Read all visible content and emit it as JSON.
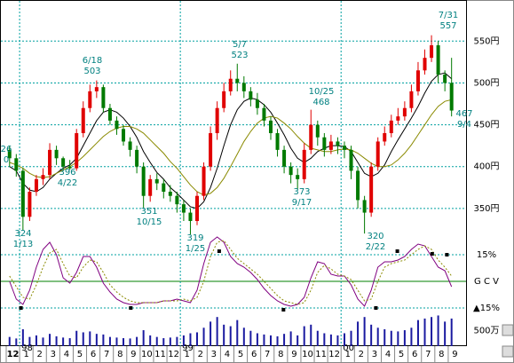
{
  "chart_data": [
    {
      "type": "candlestick",
      "categories": [
        "12",
        "1",
        "2",
        "3",
        "4",
        "5",
        "6",
        "7",
        "8",
        "9",
        "10",
        "11",
        "12",
        "1",
        "2",
        "3",
        "4",
        "5",
        "6",
        "7",
        "8",
        "9",
        "10",
        "11",
        "12",
        "1",
        "2",
        "3",
        "4",
        "5",
        "6",
        "7",
        "8",
        "9"
      ],
      "year_labels": [
        {
          "value": 1,
          "label": "98"
        },
        {
          "value": 13,
          "label": "99"
        },
        {
          "value": 25,
          "label": "00"
        }
      ],
      "xlim": [
        0,
        34
      ],
      "x": [
        0.25,
        0.75,
        1.25,
        1.75,
        2.25,
        2.75,
        3.25,
        3.75,
        4.25,
        4.75,
        5.25,
        5.75,
        6.25,
        6.75,
        7.25,
        7.75,
        8.25,
        8.75,
        9.25,
        9.75,
        10.25,
        10.75,
        11.25,
        11.75,
        12.25,
        12.75,
        13.25,
        13.75,
        14.25,
        14.75,
        15.25,
        15.75,
        16.25,
        16.75,
        17.25,
        17.75,
        18.25,
        18.75,
        19.25,
        19.75,
        20.25,
        20.75,
        21.25,
        21.75,
        22.25,
        22.75,
        23.25,
        23.75,
        24.25,
        24.75,
        25.25,
        25.75,
        26.25,
        26.75,
        27.25,
        27.75,
        28.25,
        28.75,
        29.25,
        29.75,
        30.25,
        30.75,
        31.25,
        31.75,
        32.25,
        32.75,
        33.25
      ],
      "open": [
        420,
        410,
        395,
        340,
        370,
        385,
        390,
        420,
        410,
        400,
        398,
        440,
        470,
        490,
        495,
        470,
        455,
        445,
        430,
        420,
        400,
        365,
        385,
        380,
        370,
        365,
        355,
        345,
        335,
        365,
        400,
        440,
        470,
        490,
        505,
        500,
        490,
        480,
        470,
        455,
        440,
        420,
        400,
        390,
        385,
        420,
        450,
        435,
        420,
        430,
        425,
        420,
        395,
        360,
        345,
        400,
        430,
        440,
        455,
        460,
        470,
        490,
        515,
        530,
        545,
        510,
        500
      ],
      "high": [
        425,
        415,
        398,
        375,
        390,
        398,
        428,
        425,
        412,
        408,
        445,
        478,
        498,
        503,
        498,
        475,
        460,
        450,
        435,
        425,
        405,
        390,
        392,
        385,
        378,
        370,
        360,
        350,
        370,
        405,
        448,
        478,
        500,
        515,
        523,
        508,
        495,
        488,
        475,
        460,
        445,
        425,
        405,
        398,
        428,
        468,
        455,
        440,
        438,
        435,
        430,
        425,
        400,
        365,
        405,
        435,
        448,
        462,
        470,
        478,
        498,
        525,
        540,
        557,
        550,
        515,
        530
      ],
      "low": [
        400,
        388,
        324,
        335,
        365,
        378,
        385,
        402,
        396,
        396,
        395,
        435,
        465,
        482,
        465,
        450,
        438,
        425,
        412,
        392,
        351,
        358,
        372,
        362,
        358,
        345,
        335,
        319,
        330,
        360,
        395,
        432,
        465,
        485,
        490,
        482,
        472,
        462,
        448,
        432,
        412,
        392,
        380,
        373,
        380,
        415,
        425,
        412,
        415,
        415,
        410,
        385,
        350,
        320,
        340,
        395,
        425,
        435,
        450,
        455,
        465,
        485,
        510,
        525,
        500,
        490,
        460
      ],
      "close": [
        410,
        395,
        340,
        370,
        385,
        390,
        420,
        410,
        400,
        398,
        440,
        470,
        490,
        495,
        470,
        455,
        445,
        430,
        420,
        400,
        365,
        385,
        380,
        370,
        365,
        355,
        345,
        335,
        365,
        400,
        440,
        470,
        490,
        505,
        500,
        490,
        480,
        470,
        455,
        440,
        420,
        400,
        390,
        385,
        420,
        450,
        435,
        420,
        430,
        425,
        420,
        395,
        360,
        345,
        400,
        430,
        440,
        455,
        460,
        470,
        490,
        515,
        530,
        545,
        510,
        500,
        467
      ],
      "up_color": "#e00000",
      "down_color": "#007a00",
      "series": [
        {
          "color": "#000000",
          "values": [
            400,
            395,
            380,
            372,
            370,
            375,
            385,
            392,
            398,
            402,
            410,
            425,
            440,
            455,
            465,
            468,
            465,
            458,
            448,
            435,
            418,
            405,
            393,
            385,
            375,
            368,
            360,
            352,
            350,
            358,
            375,
            398,
            425,
            450,
            468,
            478,
            482,
            480,
            474,
            465,
            452,
            438,
            422,
            410,
            405,
            410,
            418,
            422,
            425,
            425,
            424,
            418,
            405,
            392,
            388,
            392,
            402,
            418,
            432,
            445,
            458,
            472,
            488,
            502,
            510,
            512,
            505
          ]
        },
        {
          "color": "#8a8a00",
          "values": [
            405,
            402,
            398,
            392,
            388,
            387,
            388,
            392,
            396,
            400,
            405,
            412,
            420,
            428,
            436,
            442,
            446,
            448,
            448,
            445,
            440,
            432,
            424,
            416,
            406,
            398,
            388,
            378,
            370,
            366,
            368,
            375,
            386,
            400,
            415,
            430,
            442,
            452,
            458,
            460,
            458,
            452,
            445,
            436,
            428,
            422,
            420,
            418,
            418,
            420,
            421,
            420,
            416,
            410,
            404,
            400,
            400,
            402,
            408,
            416,
            426,
            438,
            450,
            462,
            472,
            478,
            480
          ]
        }
      ],
      "ylim": [
        300,
        597
      ],
      "yticks": [
        {
          "value": 550,
          "label": "550円"
        },
        {
          "value": 500,
          "label": "500円"
        },
        {
          "value": 450,
          "label": "450円"
        },
        {
          "value": 400,
          "label": "400円"
        },
        {
          "value": 350,
          "label": "350円"
        }
      ],
      "grid": true,
      "annotations": [
        [
          "7/31",
          "557"
        ],
        [
          "5/7",
          "523"
        ],
        [
          "6/18",
          "503"
        ],
        [
          "10/25",
          "468"
        ],
        [
          "467",
          "9/4"
        ],
        [
          "26",
          "0"
        ],
        [
          "396",
          "4/22"
        ],
        [
          "351",
          "10/15"
        ],
        [
          "373",
          "9/17"
        ],
        [
          "324",
          "1/13"
        ],
        [
          "319",
          "1/25"
        ],
        [
          "320",
          "2/22"
        ]
      ]
    },
    {
      "type": "line",
      "series": [
        {
          "color": "#800080",
          "values": [
            0,
            -10,
            -13,
            -5,
            8,
            18,
            22,
            15,
            2,
            -1,
            5,
            14,
            14,
            8,
            -1,
            -6,
            -10,
            -12,
            -13,
            -13,
            -12,
            -12,
            -12,
            -11,
            -11,
            -10,
            -11,
            -12,
            -5,
            10,
            22,
            25,
            22,
            14,
            10,
            8,
            5,
            1,
            -4,
            -8,
            -11,
            -13,
            -14,
            -13,
            -9,
            2,
            11,
            10,
            4,
            3,
            3,
            -2,
            -10,
            -14,
            -5,
            8,
            11,
            11,
            12,
            14,
            18,
            21,
            20,
            14,
            8,
            6,
            -3
          ]
        },
        {
          "color": "#8a8a00",
          "values": [
            3,
            -3,
            -9,
            -10,
            -2,
            8,
            16,
            18,
            10,
            3,
            2,
            8,
            12,
            11,
            5,
            -2,
            -6,
            -9,
            -11,
            -12,
            -12,
            -12,
            -12,
            -11,
            -11,
            -11,
            -10,
            -11,
            -9,
            0,
            14,
            22,
            23,
            18,
            13,
            10,
            7,
            4,
            0,
            -4,
            -8,
            -11,
            -12,
            -13,
            -12,
            -5,
            5,
            9,
            7,
            4,
            3,
            1,
            -5,
            -11,
            -10,
            0,
            8,
            10,
            11,
            12,
            15,
            18,
            20,
            18,
            12,
            8,
            3
          ]
        }
      ],
      "signals": {
        "x": [
          1.1,
          9.3,
          15.9,
          20.7,
          27.6,
          29.2,
          31.8,
          32.9
        ],
        "values": [
          -15,
          -15,
          17,
          -16,
          -15,
          17,
          15.5,
          15
        ]
      },
      "ylim": [
        -17.5,
        27.5
      ],
      "yticks": [
        {
          "value": 15,
          "label": "15%"
        },
        {
          "value": 0,
          "label": "G C V"
        },
        {
          "value": -15,
          "label": "▲15%"
        }
      ]
    },
    {
      "type": "bar",
      "color": "#1a1aa0",
      "values": [
        300,
        250,
        550,
        300,
        350,
        280,
        400,
        320,
        280,
        260,
        500,
        450,
        480,
        400,
        380,
        300,
        280,
        260,
        250,
        300,
        520,
        350,
        300,
        260,
        280,
        300,
        350,
        420,
        450,
        600,
        800,
        950,
        700,
        650,
        850,
        600,
        500,
        420,
        380,
        350,
        320,
        400,
        480,
        350,
        650,
        700,
        500,
        420,
        380,
        350,
        420,
        500,
        800,
        950,
        700,
        600,
        550,
        500,
        480,
        520,
        600,
        850,
        900,
        950,
        1000,
        800,
        900
      ],
      "ylim": [
        0,
        1100
      ],
      "yticks": [
        {
          "value": 500,
          "label": "500万"
        }
      ]
    }
  ]
}
